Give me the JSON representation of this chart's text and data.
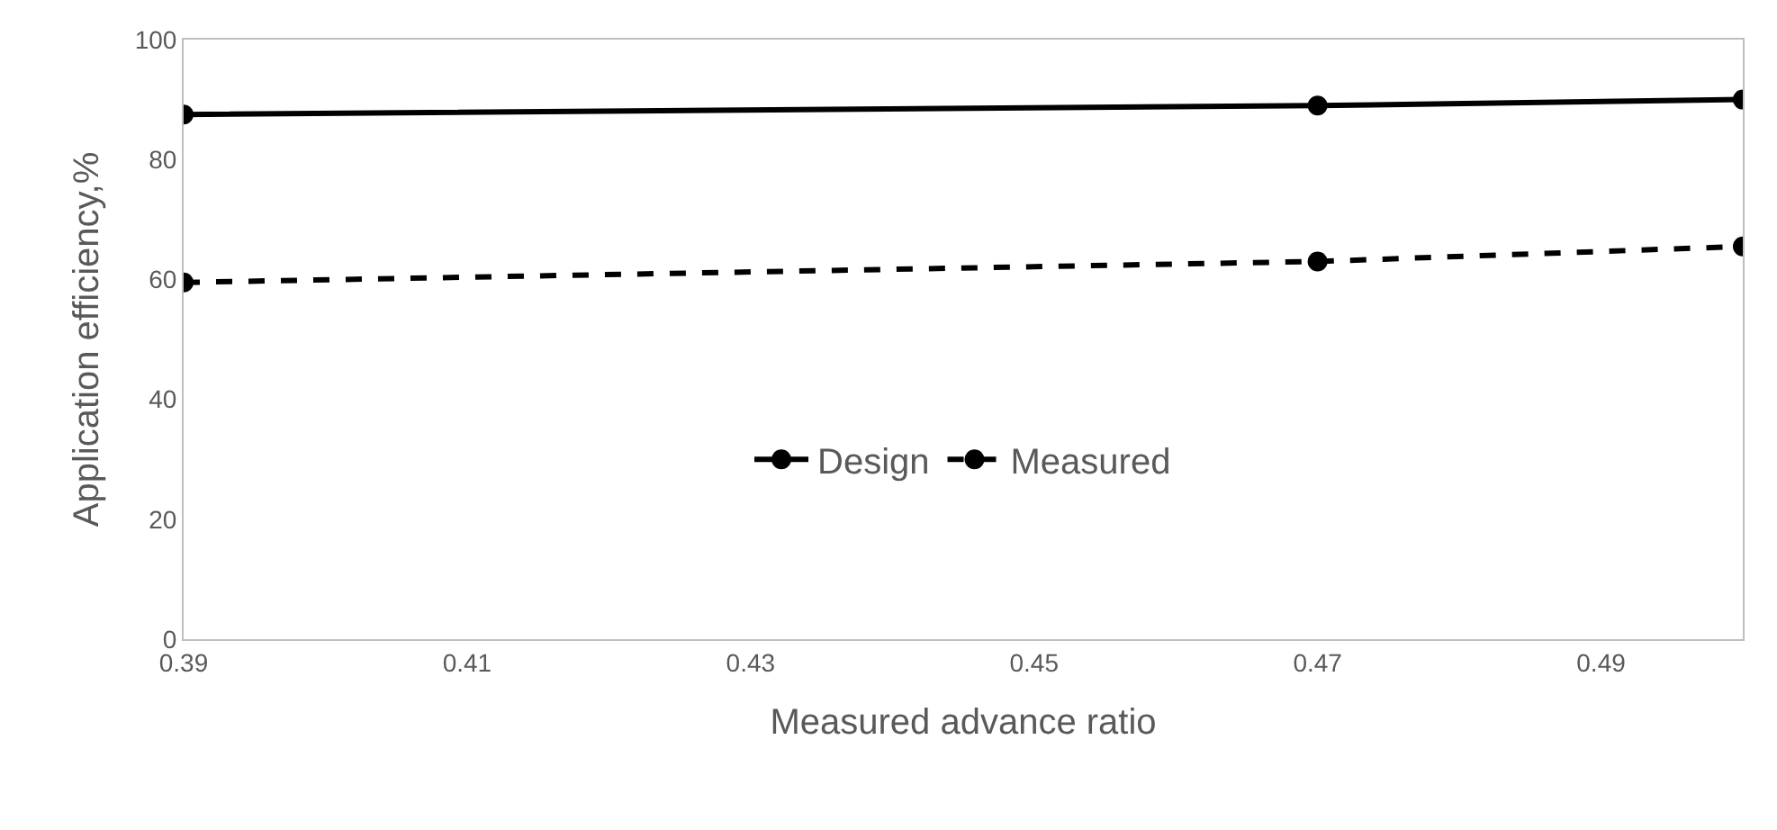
{
  "chart_data": {
    "type": "line",
    "xlabel": "Measured advance ratio",
    "ylabel": "Application efficiency,%",
    "x": [
      0.39,
      0.47,
      0.5
    ],
    "series": [
      {
        "name": "Design",
        "color": "#000000",
        "values": [
          87.5,
          89,
          90
        ],
        "line_style": "solid"
      },
      {
        "name": "Measured",
        "color": "#000000",
        "values": [
          59.5,
          63,
          65.5
        ],
        "line_style": "dashed"
      }
    ],
    "xlim": [
      0.39,
      0.5
    ],
    "xticks": [
      0.39,
      0.41,
      0.43,
      0.45,
      0.47,
      0.49
    ],
    "ylim": [
      0,
      100
    ],
    "yticks": [
      0,
      20,
      40,
      60,
      80,
      100
    ],
    "grid": false,
    "legend": "bottom",
    "marker": "circle"
  }
}
